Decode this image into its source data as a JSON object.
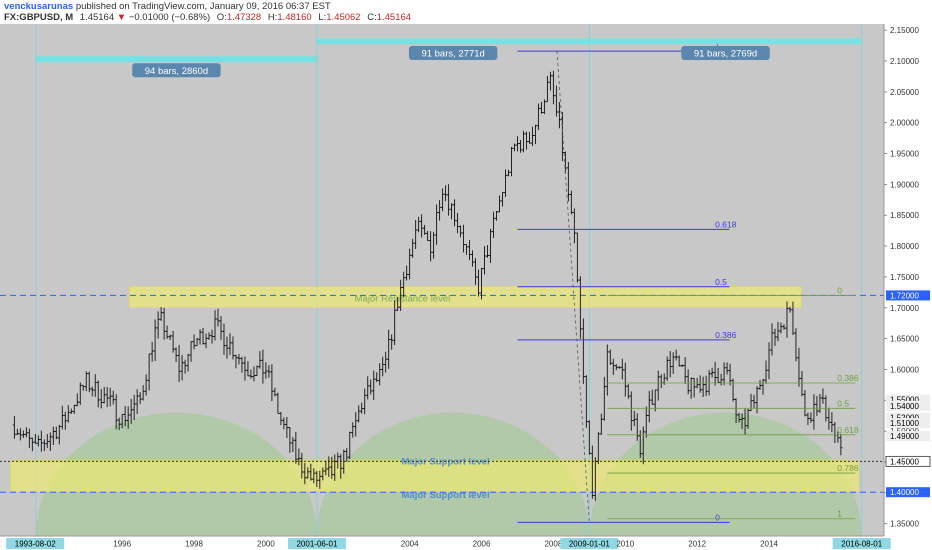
{
  "header": {
    "author": "venckusarunas",
    "published": "published on TradingView.com, January 09, 2016 06:37 EST",
    "symbol": "FX:GBPUSD, M",
    "last": "1.45164",
    "change": "−0.01000 (−0.68%)",
    "ohlc": [
      {
        "label": "O:",
        "value": "1.47328"
      },
      {
        "label": "H:",
        "value": "1.48160"
      },
      {
        "label": "L:",
        "value": "1.45062"
      },
      {
        "label": "C:",
        "value": "1.45164"
      }
    ]
  },
  "chart_data": {
    "type": "candlestick",
    "ylim": [
      1.33,
      2.16
    ],
    "y_ticks": [
      "2.15000",
      "2.10000",
      "2.05000",
      "2.00000",
      "1.95000",
      "1.90000",
      "1.85000",
      "1.80000",
      "1.75000",
      "1.70000",
      "1.65000",
      "1.60000",
      "1.55000",
      "1.50000",
      "1.45000",
      "1.40000",
      "1.35000"
    ],
    "y_tick_values": [
      2.15,
      2.1,
      2.05,
      2.0,
      1.95,
      1.9,
      1.85,
      1.8,
      1.75,
      1.7,
      1.65,
      1.6,
      1.55,
      1.5,
      1.45,
      1.4,
      1.35
    ],
    "x_ticks": [
      {
        "label": "1993-08-02",
        "t": 1993.58,
        "highlight": true
      },
      {
        "label": "1996",
        "t": 1996.0
      },
      {
        "label": "1998",
        "t": 1998.0
      },
      {
        "label": "2000",
        "t": 2000.0
      },
      {
        "label": "2001-06-01",
        "t": 2001.42,
        "highlight": true
      },
      {
        "label": "2004",
        "t": 2004.0
      },
      {
        "label": "2006",
        "t": 2006.0
      },
      {
        "label": "2008",
        "t": 2008.0
      },
      {
        "label": "2009-01-01",
        "t": 2009.0,
        "highlight": true
      },
      {
        "label": "2010",
        "t": 2010.0
      },
      {
        "label": "2012",
        "t": 2012.0
      },
      {
        "label": "2014",
        "t": 2014.0
      },
      {
        "label": "2016-08-01",
        "t": 2016.58,
        "highlight": true
      }
    ],
    "price_anchors": [
      [
        1993.0,
        1.51
      ],
      [
        1993.6,
        1.47
      ],
      [
        1994.3,
        1.51
      ],
      [
        1995.0,
        1.58
      ],
      [
        1995.6,
        1.55
      ],
      [
        1996.0,
        1.52
      ],
      [
        1996.5,
        1.55
      ],
      [
        1996.9,
        1.66
      ],
      [
        1997.1,
        1.68
      ],
      [
        1997.6,
        1.6
      ],
      [
        1998.1,
        1.65
      ],
      [
        1998.6,
        1.67
      ],
      [
        1999.0,
        1.64
      ],
      [
        1999.5,
        1.6
      ],
      [
        2000.0,
        1.6
      ],
      [
        2000.4,
        1.52
      ],
      [
        2000.9,
        1.45
      ],
      [
        2001.3,
        1.42
      ],
      [
        2001.8,
        1.43
      ],
      [
        2002.2,
        1.46
      ],
      [
        2002.7,
        1.55
      ],
      [
        2003.3,
        1.6
      ],
      [
        2003.7,
        1.72
      ],
      [
        2004.2,
        1.83
      ],
      [
        2004.6,
        1.8
      ],
      [
        2004.9,
        1.9
      ],
      [
        2005.4,
        1.83
      ],
      [
        2005.9,
        1.73
      ],
      [
        2006.4,
        1.85
      ],
      [
        2006.9,
        1.96
      ],
      [
        2007.4,
        1.98
      ],
      [
        2007.9,
        2.07
      ],
      [
        2008.2,
        1.98
      ],
      [
        2008.6,
        1.8
      ],
      [
        2008.9,
        1.52
      ],
      [
        2009.1,
        1.4
      ],
      [
        2009.5,
        1.62
      ],
      [
        2009.9,
        1.6
      ],
      [
        2010.4,
        1.47
      ],
      [
        2010.8,
        1.57
      ],
      [
        2011.3,
        1.62
      ],
      [
        2011.8,
        1.57
      ],
      [
        2012.3,
        1.58
      ],
      [
        2012.8,
        1.6
      ],
      [
        2013.2,
        1.5
      ],
      [
        2013.6,
        1.55
      ],
      [
        2014.1,
        1.65
      ],
      [
        2014.6,
        1.7
      ],
      [
        2015.0,
        1.52
      ],
      [
        2015.4,
        1.55
      ],
      [
        2015.7,
        1.52
      ],
      [
        2016.0,
        1.46
      ]
    ],
    "cycle_arcs": [
      {
        "t0": 1993.6,
        "t1": 2001.42,
        "top": 1.53
      },
      {
        "t0": 2001.42,
        "t1": 2009.0,
        "top": 1.53
      },
      {
        "t0": 2009.0,
        "t1": 2016.58,
        "top": 1.53
      }
    ],
    "cycle_markers": [
      {
        "label": "94 bars, 2860d",
        "t0": 1993.6,
        "t1": 2001.42,
        "bar_y": 2.103,
        "label_y": 2.085
      },
      {
        "label": "91 bars, 2771d",
        "t0": 2001.42,
        "t1": 2009.0,
        "bar_y": 2.132,
        "label_y": 2.113
      },
      {
        "label": "91 bars, 2769d",
        "t0": 2009.0,
        "t1": 2016.58,
        "bar_y": 2.132,
        "label_y": 2.113
      }
    ],
    "fib_retracement": {
      "t0": 2007.0,
      "t1": 2012.9,
      "label_t": 2012.5,
      "color": "#3b3bd6",
      "levels": [
        {
          "label": "1",
          "price": 2.116
        },
        {
          "label": "0.618",
          "price": 1.827
        },
        {
          "label": "0.5",
          "price": 1.734
        },
        {
          "label": "0.386",
          "price": 1.648
        },
        {
          "label": "0",
          "price": 1.352
        }
      ]
    },
    "fib_small": {
      "t0": 2009.5,
      "t1": 2016.4,
      "label_t": 2015.9,
      "color": "#6f9e3f",
      "levels": [
        {
          "label": "0",
          "price": 1.72
        },
        {
          "label": "0.386",
          "price": 1.578
        },
        {
          "label": "0.5",
          "price": 1.537
        },
        {
          "label": "0.618",
          "price": 1.494
        },
        {
          "label": "0.786",
          "price": 1.432
        },
        {
          "label": "1",
          "price": 1.358
        }
      ]
    },
    "zones": [
      {
        "label": "Major Resistance level",
        "t0": 1996.2,
        "t1": 2014.9,
        "p0": 1.734,
        "p1": 1.7,
        "label_t": 2003.8
      },
      {
        "label": "Major Support level",
        "t0": 1992.9,
        "t1": 2016.5,
        "p0": 1.452,
        "p1": 1.402,
        "label_t": 2005.0
      }
    ],
    "support_labels": [
      {
        "label": "Major Support level",
        "price": 1.449,
        "t": 2005.0
      },
      {
        "label": "Major Support level",
        "price": 1.395,
        "t": 2005.0
      }
    ],
    "h_lines": [
      {
        "price": 1.72,
        "style": "dashed",
        "color": "#2962ff"
      },
      {
        "price": 1.451,
        "style": "dotted",
        "color": "#333333"
      },
      {
        "price": 1.401,
        "style": "dashed",
        "color": "#2962ff"
      }
    ],
    "right_labels": [
      {
        "value": "1.72000",
        "price": 1.72
      },
      {
        "value": "1.55000",
        "price": 1.551
      },
      {
        "value": "1.54000",
        "price": 1.541
      },
      {
        "value": "1.52000",
        "price": 1.522
      },
      {
        "value": "1.51000",
        "price": 1.513
      },
      {
        "value": "1.49000",
        "price": 1.492
      },
      {
        "value": "1.45000",
        "price": 1.451
      },
      {
        "value": "1.40000",
        "price": 1.401
      }
    ]
  }
}
